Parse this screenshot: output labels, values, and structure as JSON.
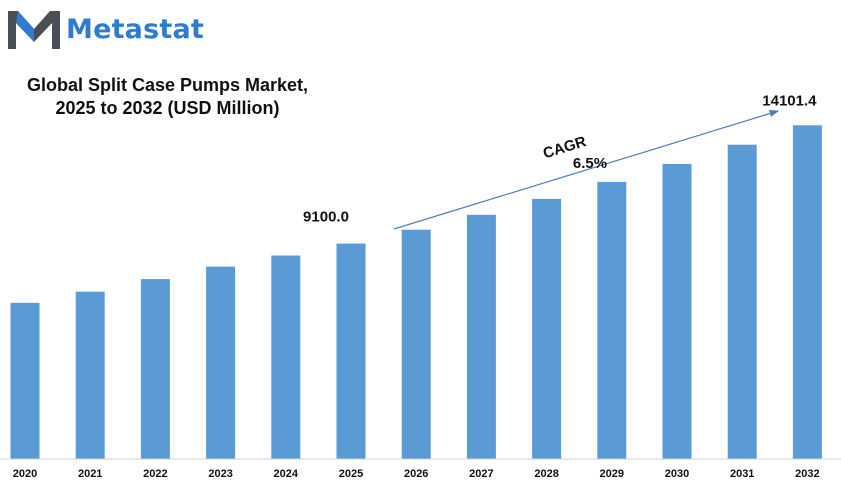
{
  "brand": {
    "name": "Metastat",
    "logo_icon": "metastat-m-logo-icon"
  },
  "title_lines": [
    "Global Split Case Pumps Market,",
    "2025 to 2032 (USD Million)"
  ],
  "colors": {
    "bar": "#5b9bd5",
    "brand": "#2e7bd1",
    "logo_dark": "#4a4f57",
    "arrow": "#4a7fc1"
  },
  "chart_data": {
    "type": "bar",
    "title": "Global Split Case Pumps Market, 2025 to 2032 (USD Million)",
    "categories": [
      "2020",
      "2021",
      "2022",
      "2023",
      "2024",
      "2025",
      "2026",
      "2027",
      "2028",
      "2029",
      "2030",
      "2031",
      "2032"
    ],
    "values": [
      6600,
      7070,
      7600,
      8130,
      8600,
      9100,
      9690,
      10320,
      10990,
      11710,
      12470,
      13280,
      14101.4
    ],
    "ylim": [
      0,
      15000
    ],
    "xlabel": "",
    "ylabel": "",
    "grid": false,
    "data_labels": [
      {
        "category": "2025",
        "text": "9100.0"
      },
      {
        "category": "2032",
        "text": "14101.4"
      }
    ],
    "annotation": {
      "label": "CAGR",
      "value": "6.5%",
      "from": "2026",
      "to": "2032"
    }
  }
}
